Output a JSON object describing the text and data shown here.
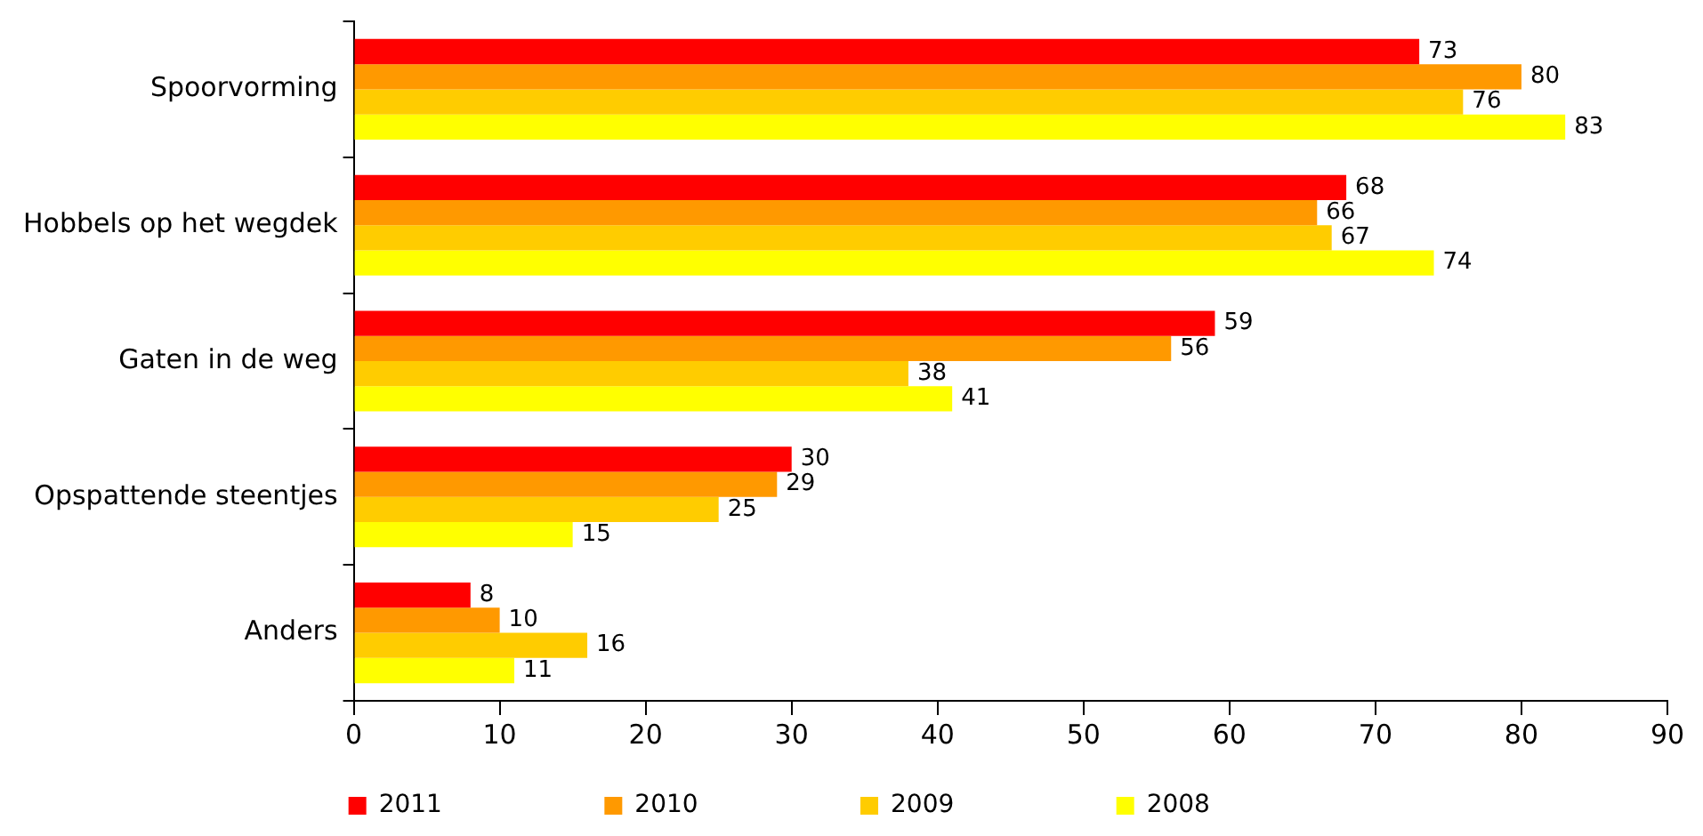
{
  "chart_data": {
    "type": "bar",
    "orientation": "horizontal",
    "categories": [
      "Spoorvorming",
      "Hobbels op het wegdek",
      "Gaten in de weg",
      "Opspattende steentjes",
      "Anders"
    ],
    "series": [
      {
        "name": "2011",
        "color": "#ff0000",
        "values": [
          73,
          68,
          59,
          30,
          8
        ]
      },
      {
        "name": "2010",
        "color": "#ff9900",
        "values": [
          80,
          66,
          56,
          29,
          10
        ]
      },
      {
        "name": "2009",
        "color": "#ffcc00",
        "values": [
          76,
          67,
          38,
          25,
          16
        ]
      },
      {
        "name": "2008",
        "color": "#ffff00",
        "values": [
          83,
          74,
          41,
          15,
          11
        ]
      }
    ],
    "xlim": [
      0,
      90
    ],
    "xticks": [
      0,
      10,
      20,
      30,
      40,
      50,
      60,
      70,
      80,
      90
    ],
    "grid": false,
    "legend": "bottom",
    "data_labels": true
  }
}
